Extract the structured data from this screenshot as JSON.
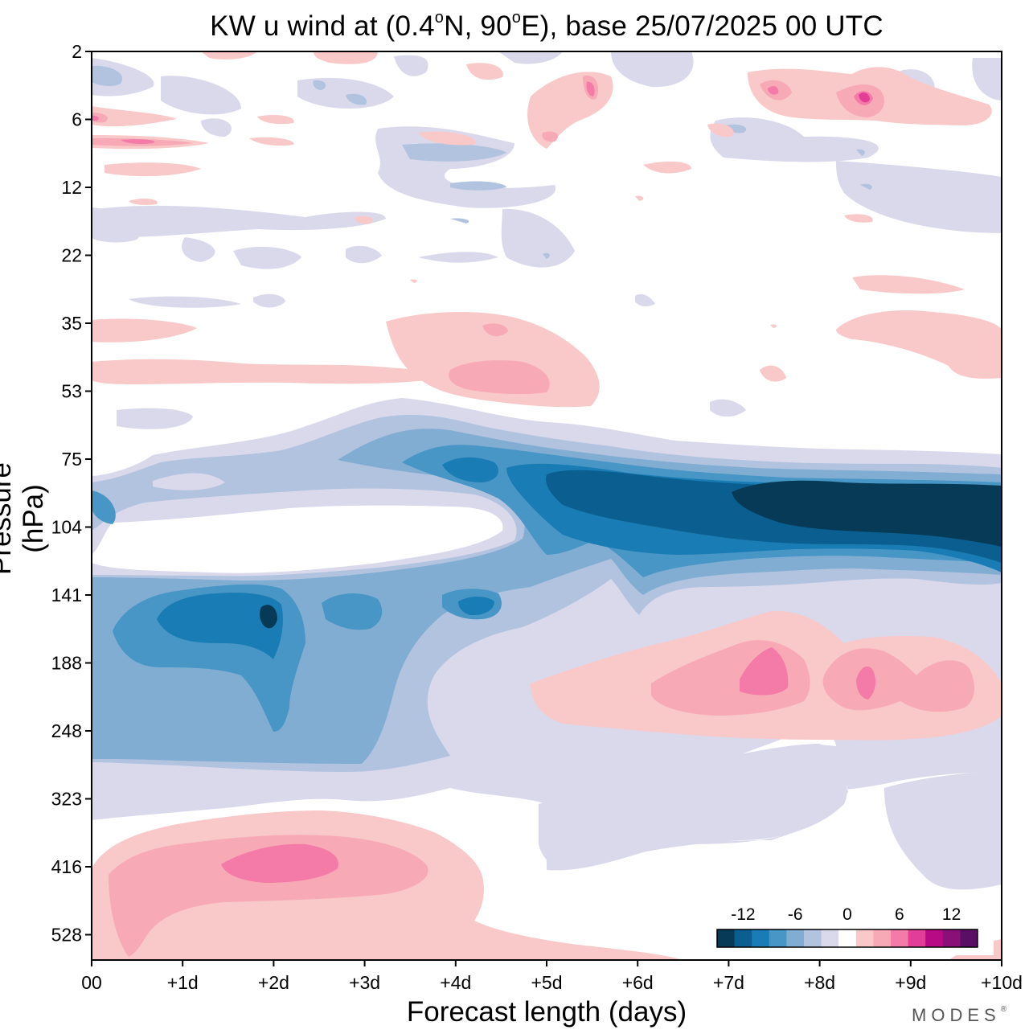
{
  "chart_data": {
    "type": "heatmap",
    "title_prefix": "KW u wind at (0.4",
    "title_deg1": "o",
    "title_mid": "N, 90",
    "title_deg2": "o",
    "title_suffix": "E),  base 25/07/2025  00 UTC",
    "xlabel": "Forecast length (days)",
    "ylabel": "Pressure (hPa)",
    "x_ticks": [
      "00",
      "+1d",
      "+2d",
      "+3d",
      "+4d",
      "+5d",
      "+6d",
      "+7d",
      "+8d",
      "+9d",
      "+10d"
    ],
    "x_range_days": [
      0,
      10
    ],
    "y_ticks": [
      "2",
      "6",
      "12",
      "22",
      "35",
      "53",
      "75",
      "104",
      "141",
      "188",
      "248",
      "323",
      "416",
      "528"
    ],
    "y_range_hPa": [
      2,
      620
    ],
    "colorbar": {
      "tick_labels": [
        "-12",
        "-6",
        "0",
        "6",
        "12"
      ],
      "colors": [
        "#063a57",
        "#0b5f90",
        "#1a7cb4",
        "#4796c5",
        "#82add3",
        "#b2c3e0",
        "#dad9ec",
        "#ffffff",
        "#f9c8c8",
        "#f7a9b6",
        "#f47aa7",
        "#e23e95",
        "#b80a84",
        "#891076",
        "#5b0e66"
      ],
      "levels_m_per_s": [
        -14,
        -12,
        -10,
        -8,
        -6,
        -4,
        -2,
        0,
        2,
        4,
        6,
        8,
        10,
        12,
        14
      ]
    },
    "features": [
      {
        "name": "tropopause easterly jet",
        "sign": "easterly",
        "days": [
          3.5,
          10
        ],
        "pressure_hPa": [
          75,
          115
        ],
        "peak_m_per_s": -14
      },
      {
        "name": "upper troposphere easterlies",
        "sign": "easterly",
        "days": [
          0,
          4.5
        ],
        "pressure_hPa": [
          130,
          260
        ],
        "peak_m_per_s": -13
      },
      {
        "name": "upper troposphere westerlies",
        "sign": "westerly",
        "days": [
          5,
          10
        ],
        "pressure_hPa": [
          160,
          240
        ],
        "peak_m_per_s": 7
      },
      {
        "name": "mid troposphere westerlies",
        "sign": "westerly",
        "days": [
          0,
          4.5
        ],
        "pressure_hPa": [
          360,
          600
        ],
        "peak_m_per_s": 7
      },
      {
        "name": "lower stratosphere westerlies",
        "sign": "westerly",
        "days": [
          3,
          5.5
        ],
        "pressure_hPa": [
          33,
          55
        ],
        "peak_m_per_s": 4
      }
    ]
  },
  "branding": {
    "name": "MODES",
    "mark": "®"
  },
  "colors": {
    "axis": "#000000",
    "background": "#ffffff"
  }
}
